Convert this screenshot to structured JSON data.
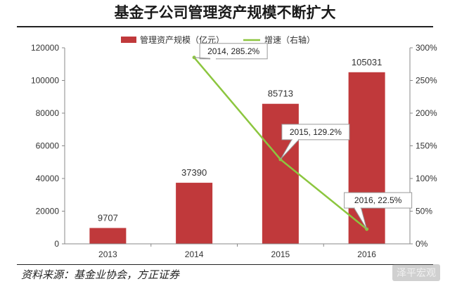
{
  "title": "基金子公司管理资产规模不断扩大",
  "source": "资料来源：基金业协会，方正证券",
  "watermark": "泽平宏观",
  "colors": {
    "bar": "#c0393b",
    "line": "#8cc63f",
    "axis": "#888888"
  },
  "chart_data": {
    "type": "bar",
    "categories": [
      "2013",
      "2014",
      "2015",
      "2016"
    ],
    "series": [
      {
        "name": "管理资产规模（亿元）",
        "type": "bar",
        "axis": "left",
        "values": [
          9707,
          37390,
          85713,
          105031
        ]
      },
      {
        "name": "增速（右轴）",
        "type": "line",
        "axis": "right",
        "x": [
          "2014",
          "2015",
          "2016"
        ],
        "values": [
          285.2,
          129.2,
          22.5
        ]
      }
    ],
    "bar_labels": [
      "9707",
      "37390",
      "85713",
      "105031"
    ],
    "callouts": [
      "2014, 285.2%",
      "2015, 129.2%",
      "2016, 22.5%"
    ],
    "left_ticks": [
      "0",
      "20000",
      "40000",
      "60000",
      "80000",
      "100000",
      "120000"
    ],
    "right_ticks": [
      "0%",
      "50%",
      "100%",
      "150%",
      "200%",
      "250%",
      "300%"
    ],
    "ylim": [
      0,
      120000
    ],
    "y2lim": [
      0,
      300
    ],
    "legend_position": "top"
  }
}
